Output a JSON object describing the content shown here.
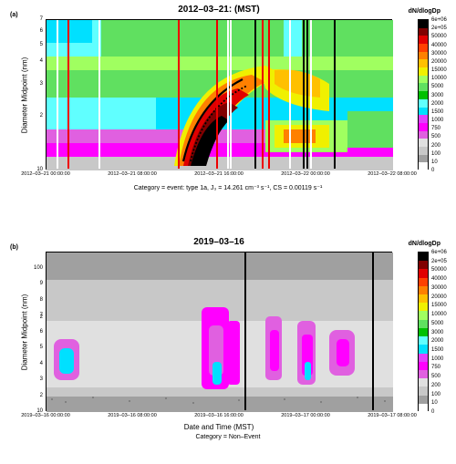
{
  "colorbar": {
    "label": "dN/dlogDp",
    "ticks": [
      "6e+06",
      "2e+05",
      "50000",
      "40000",
      "30000",
      "20000",
      "15000",
      "10000",
      "5000",
      "3000",
      "2000",
      "1500",
      "1000",
      "750",
      "500",
      "200",
      "100",
      "10",
      "0"
    ],
    "colors": [
      "#ffffff",
      "#a0a0a0",
      "#c8c8c8",
      "#e0e0e0",
      "#e060e0",
      "#ff00ff",
      "#e040ff",
      "#00e0ff",
      "#60ffff",
      "#00c000",
      "#60e060",
      "#a0ff60",
      "#f0f000",
      "#ffc000",
      "#ff8000",
      "#ff4000",
      "#e00000",
      "#800000",
      "#000000"
    ]
  },
  "panel_a": {
    "sublabel": "(a)",
    "title": "2012–03–21: (MST)",
    "ylabel": "Diameter Midpoint (nm)",
    "yticks": [
      "10",
      "2",
      "3",
      "4",
      "5",
      "6",
      "7"
    ],
    "xticks": [
      "2012–03–21 00:00:00",
      "2012–03–21 08:00:00",
      "2012–03–21 16:00:00",
      "2012–03–22 00:00:00",
      "2012–03–22 08:00:00"
    ],
    "caption": "Category = event: type 1a, J₃ = 14.261 cm⁻³ s⁻¹, CS = 0.00119 s⁻¹",
    "vlines_white": [
      3,
      15,
      52,
      53,
      70,
      76
    ],
    "vlines_red": [
      6,
      38,
      49,
      62,
      64
    ],
    "vlines_black": [
      60,
      74,
      75,
      83
    ]
  },
  "panel_b": {
    "sublabel": "(b)",
    "title": "2019–03–16",
    "ylabel": "Diameter Midpoint (nm)",
    "yticks": [
      "10",
      "2",
      "3",
      "4",
      "5",
      "6",
      "7",
      "8",
      "9",
      "100",
      "2"
    ],
    "xticks": [
      "2019–03–16 00:00:00",
      "2019–03–16 08:00:00",
      "2019–03–16 16:00:00",
      "2019–03–17 00:00:00",
      "2019–03–17 08:00:00"
    ],
    "xlabel": "Date and Time (MST)",
    "caption": "Category = Non–Event",
    "vlines_black": [
      57,
      94
    ]
  }
}
